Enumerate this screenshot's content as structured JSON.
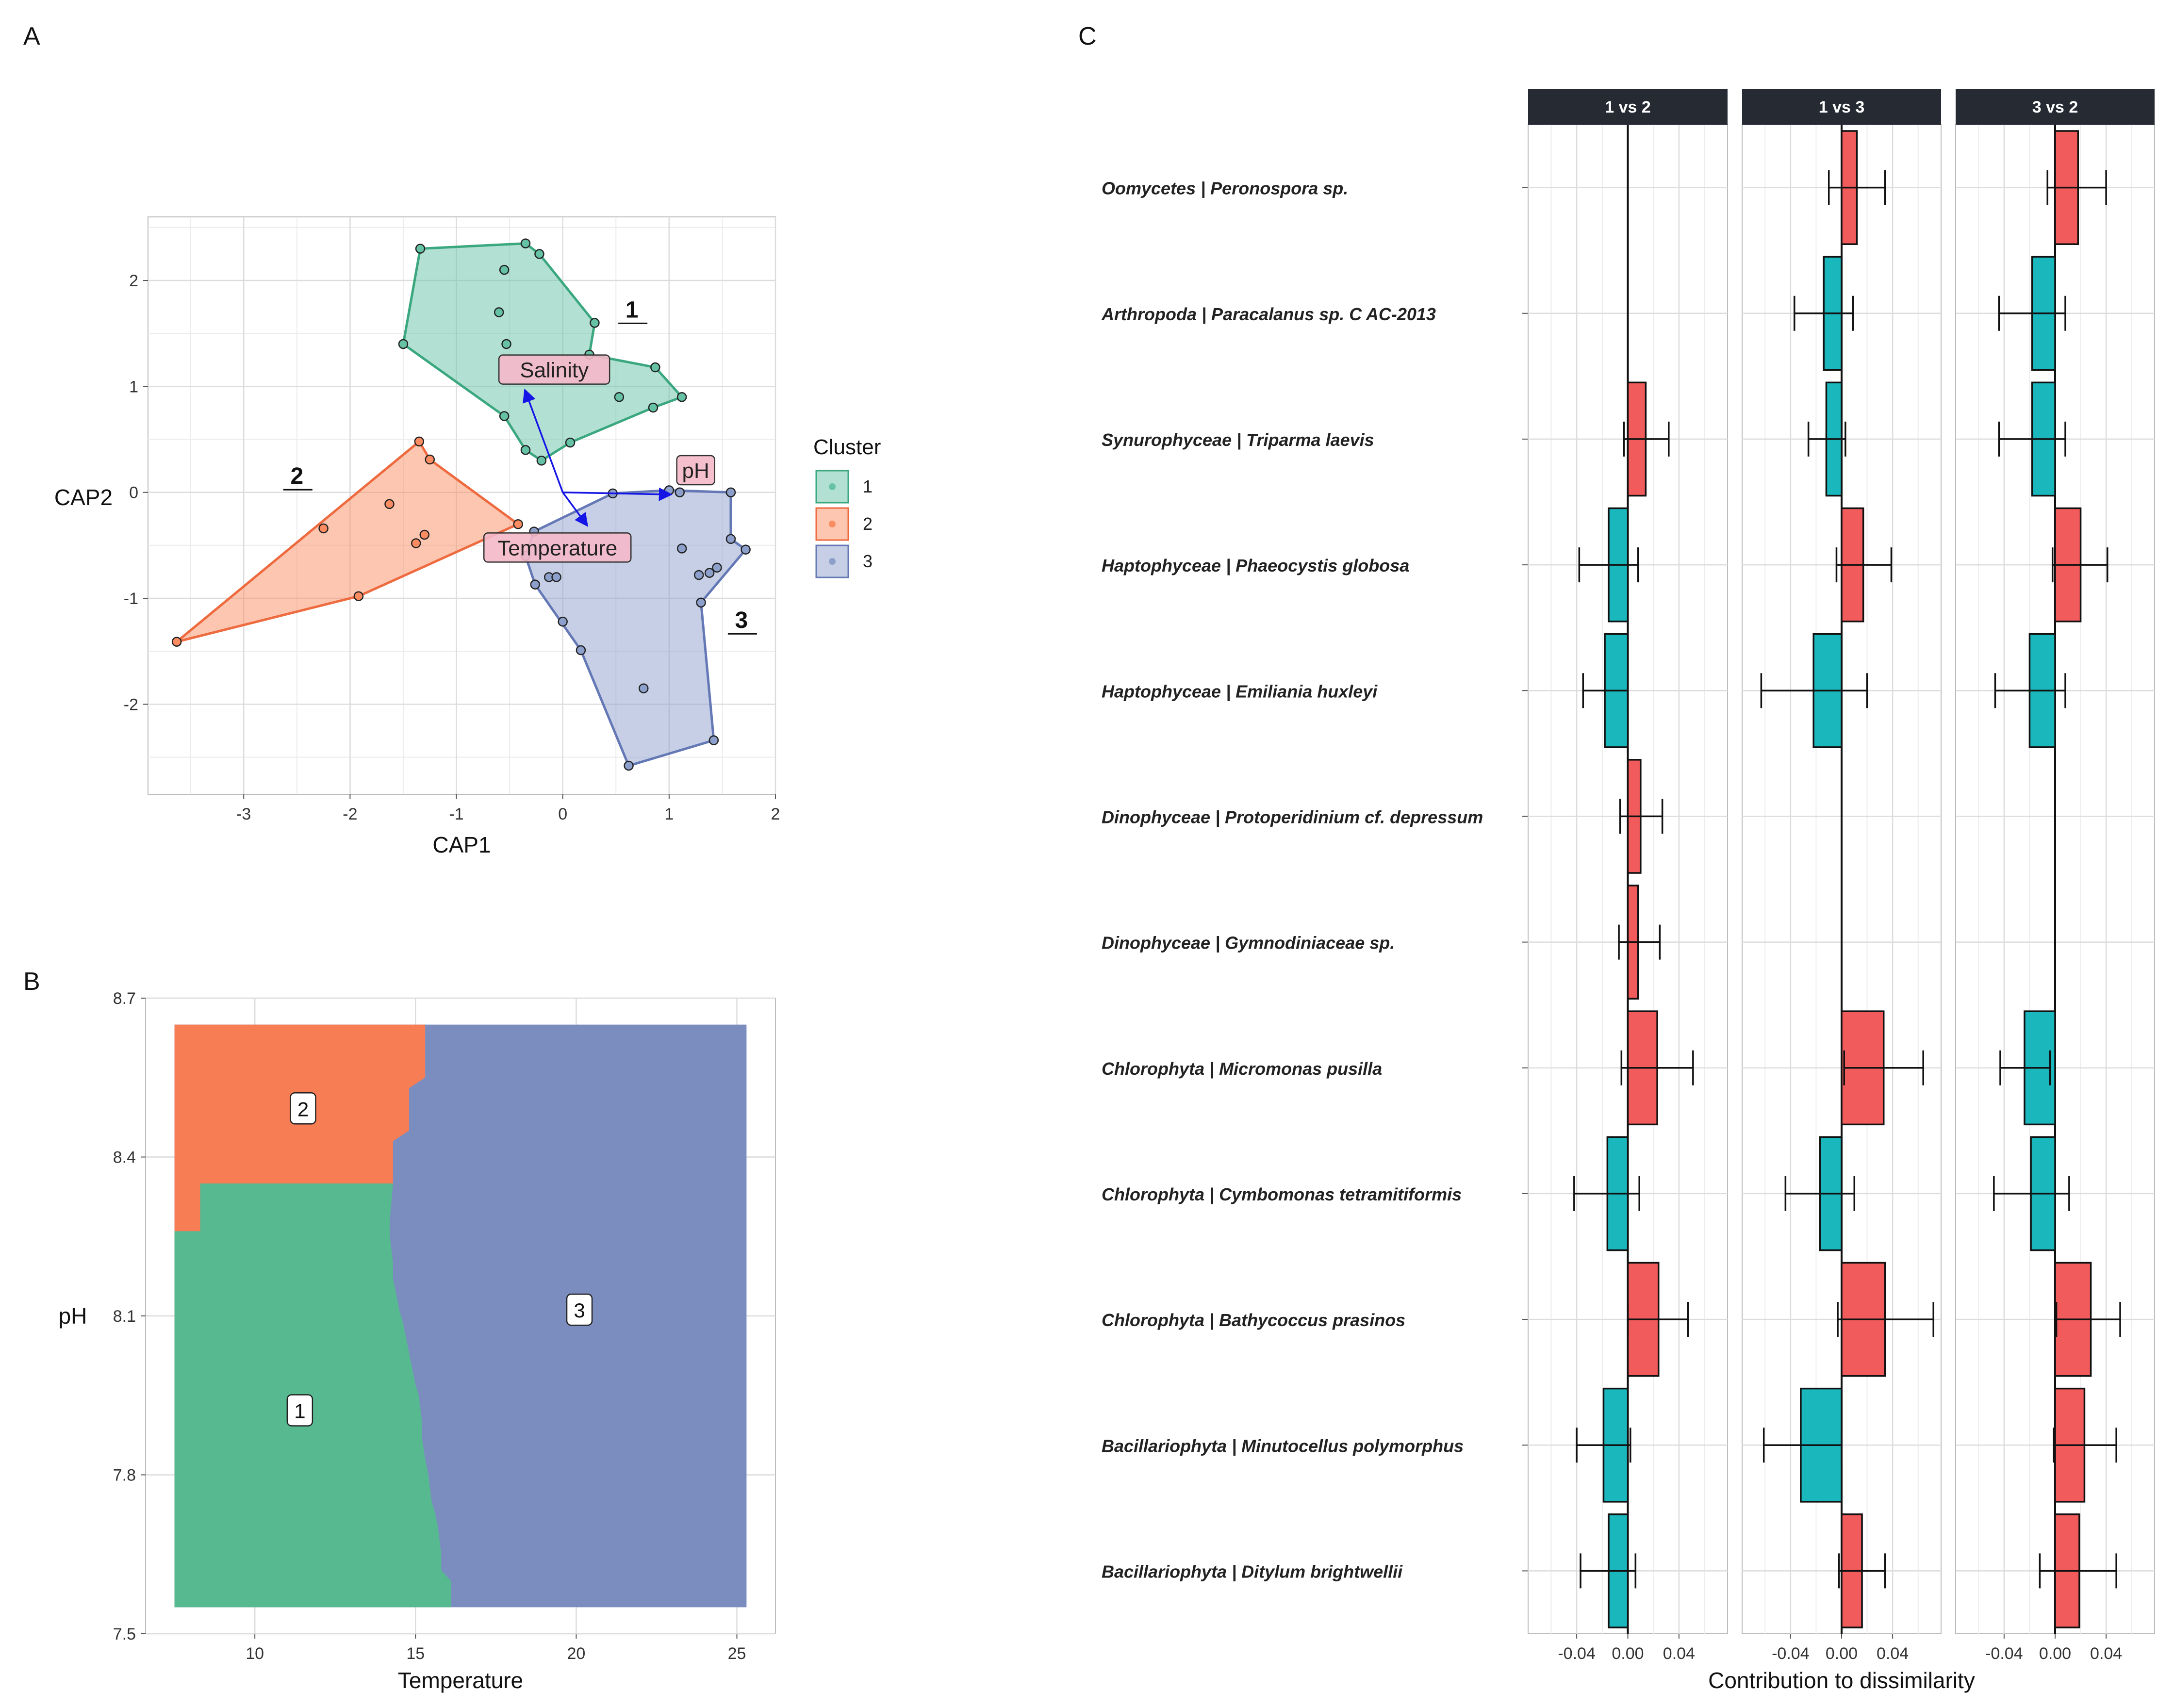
{
  "panels": {
    "a": "A",
    "b": "B",
    "c": "C"
  },
  "colors": {
    "cluster1": "#66c2a5",
    "cluster2": "#fc8d62",
    "cluster3": "#8da0cb",
    "tile1": "#57b990",
    "tile2": "#f77d54",
    "tile3": "#7b8dbf",
    "pos": "#f25b5b",
    "neg": "#1ab7bd",
    "arrow": "#1515e6",
    "strip": "#262a33",
    "grid": "#dcdcdc",
    "envLabel": "#f4b8c9"
  },
  "chart_data": [
    {
      "type": "scatter",
      "panel": "A",
      "xlabel": "CAP1",
      "ylabel": "CAP2",
      "xlim": [
        -3.9,
        2.0
      ],
      "ylim": [
        -2.85,
        2.6
      ],
      "xticks": [
        "-3",
        "-2",
        "-1",
        "0",
        "1",
        "2"
      ],
      "yticks": [
        "-2",
        "-1",
        "0",
        "1",
        "2"
      ],
      "grid": true,
      "legend": {
        "title": "Cluster",
        "position": "right",
        "entries": [
          "1",
          "2",
          "3"
        ]
      },
      "series": [
        {
          "name": "1",
          "points": [
            [
              -1.34,
              2.3
            ],
            [
              -0.55,
              2.1
            ],
            [
              -0.35,
              2.35
            ],
            [
              -0.22,
              2.25
            ],
            [
              -0.6,
              1.7
            ],
            [
              -0.53,
              1.4
            ],
            [
              0.3,
              1.6
            ],
            [
              -1.5,
              1.4
            ],
            [
              0.25,
              1.3
            ],
            [
              0.87,
              1.18
            ],
            [
              0.53,
              0.9
            ],
            [
              1.12,
              0.9
            ],
            [
              0.85,
              0.8
            ],
            [
              -0.55,
              0.72
            ],
            [
              0.07,
              0.47
            ],
            [
              -0.35,
              0.4
            ],
            [
              -0.2,
              0.3
            ]
          ]
        },
        {
          "name": "2",
          "points": [
            [
              -1.35,
              0.48
            ],
            [
              -1.25,
              0.31
            ],
            [
              -1.63,
              -0.11
            ],
            [
              -2.25,
              -0.34
            ],
            [
              -1.3,
              -0.4
            ],
            [
              -1.38,
              -0.48
            ],
            [
              -0.42,
              -0.3
            ],
            [
              -1.92,
              -0.98
            ],
            [
              -3.63,
              -1.41
            ]
          ]
        },
        {
          "name": "3",
          "points": [
            [
              1.0,
              0.02
            ],
            [
              1.1,
              0.0
            ],
            [
              0.47,
              -0.01
            ],
            [
              1.58,
              0.0
            ],
            [
              1.58,
              -0.44
            ],
            [
              1.72,
              -0.54
            ],
            [
              1.12,
              -0.53
            ],
            [
              1.45,
              -0.71
            ],
            [
              1.38,
              -0.76
            ],
            [
              1.28,
              -0.78
            ],
            [
              -0.27,
              -0.37
            ],
            [
              -0.35,
              -0.6
            ],
            [
              -0.13,
              -0.8
            ],
            [
              -0.06,
              -0.8
            ],
            [
              -0.26,
              -0.87
            ],
            [
              1.3,
              -1.04
            ],
            [
              0.0,
              -1.22
            ],
            [
              0.17,
              -1.49
            ],
            [
              0.76,
              -1.85
            ],
            [
              1.42,
              -2.34
            ],
            [
              0.62,
              -2.58
            ]
          ]
        }
      ],
      "hulls": [
        {
          "name": "1",
          "points": [
            [
              -1.34,
              2.3
            ],
            [
              -0.35,
              2.35
            ],
            [
              -0.22,
              2.25
            ],
            [
              0.3,
              1.6
            ],
            [
              0.25,
              1.3
            ],
            [
              0.87,
              1.18
            ],
            [
              1.12,
              0.9
            ],
            [
              0.85,
              0.8
            ],
            [
              0.07,
              0.47
            ],
            [
              -0.2,
              0.3
            ],
            [
              -0.35,
              0.4
            ],
            [
              -0.55,
              0.72
            ],
            [
              -1.5,
              1.4
            ]
          ]
        },
        {
          "name": "2",
          "points": [
            [
              -1.35,
              0.48
            ],
            [
              -1.25,
              0.31
            ],
            [
              -0.42,
              -0.3
            ],
            [
              -1.92,
              -0.98
            ],
            [
              -3.63,
              -1.41
            ]
          ]
        },
        {
          "name": "3",
          "points": [
            [
              0.47,
              -0.01
            ],
            [
              1.0,
              0.02
            ],
            [
              1.58,
              0.0
            ],
            [
              1.58,
              -0.44
            ],
            [
              1.72,
              -0.54
            ],
            [
              1.3,
              -1.04
            ],
            [
              1.42,
              -2.34
            ],
            [
              0.62,
              -2.58
            ],
            [
              0.17,
              -1.49
            ],
            [
              -0.26,
              -0.87
            ],
            [
              -0.35,
              -0.6
            ],
            [
              -0.27,
              -0.37
            ]
          ]
        }
      ],
      "cluster_labels": [
        {
          "text": "1",
          "x": 0.65,
          "y": 1.65
        },
        {
          "text": "2",
          "x": -2.5,
          "y": 0.08
        },
        {
          "text": "3",
          "x": 1.68,
          "y": -1.28
        }
      ],
      "vectors": [
        {
          "label": "Salinity",
          "x": -0.35,
          "y": 0.95,
          "label_x": -0.08,
          "label_y": 1.15
        },
        {
          "label": "pH",
          "x": 1.0,
          "y": -0.02,
          "label_x": 1.25,
          "label_y": 0.2
        },
        {
          "label": "Temperature",
          "x": 0.22,
          "y": -0.3,
          "label_x": -0.05,
          "label_y": -0.53
        }
      ]
    },
    {
      "type": "heatmap",
      "panel": "B",
      "xlabel": "Temperature",
      "ylabel": "pH",
      "xlim": [
        6.6,
        26.2
      ],
      "ylim": [
        7.5,
        8.7
      ],
      "xticks": [
        "10",
        "15",
        "20",
        "25"
      ],
      "yticks": [
        "7.5",
        "7.8",
        "8.1",
        "8.4",
        "8.7"
      ],
      "data_extent": {
        "x": [
          7.5,
          25.3
        ],
        "y": [
          7.55,
          8.65
        ]
      },
      "boundary_1_3": [
        [
          14.3,
          8.35
        ],
        [
          14.2,
          8.28
        ],
        [
          14.2,
          8.25
        ],
        [
          14.3,
          8.2
        ],
        [
          14.3,
          8.17
        ],
        [
          14.4,
          8.14
        ],
        [
          14.5,
          8.11
        ],
        [
          14.6,
          8.09
        ],
        [
          14.7,
          8.06
        ],
        [
          14.8,
          8.03
        ],
        [
          14.9,
          8.0
        ],
        [
          15.0,
          7.97
        ],
        [
          15.1,
          7.95
        ],
        [
          15.2,
          7.9
        ],
        [
          15.2,
          7.87
        ],
        [
          15.3,
          7.83
        ],
        [
          15.4,
          7.8
        ],
        [
          15.5,
          7.75
        ],
        [
          15.6,
          7.73
        ],
        [
          15.7,
          7.7
        ],
        [
          15.8,
          7.65
        ],
        [
          15.8,
          7.62
        ],
        [
          16.1,
          7.6
        ],
        [
          16.1,
          7.55
        ]
      ],
      "boundary_2_3": [
        [
          15.3,
          8.65
        ],
        [
          15.3,
          8.55
        ],
        [
          14.8,
          8.53
        ],
        [
          14.8,
          8.45
        ],
        [
          14.3,
          8.43
        ],
        [
          14.3,
          8.35
        ]
      ],
      "boundary_1_2": [
        [
          7.5,
          8.26
        ],
        [
          8.3,
          8.26
        ],
        [
          8.3,
          8.35
        ],
        [
          14.3,
          8.35
        ]
      ],
      "region_labels": [
        {
          "text": "2",
          "x": 11.5,
          "y": 8.49
        },
        {
          "text": "3",
          "x": 20.1,
          "y": 8.11
        },
        {
          "text": "1",
          "x": 11.4,
          "y": 7.92
        }
      ]
    },
    {
      "type": "bar",
      "panel": "C",
      "orientation": "horizontal",
      "xlabel": "Contribution to dissimilarity",
      "xlim": [
        -0.078,
        0.078
      ],
      "xticks": [
        "-0.04",
        "0.00",
        "0.04"
      ],
      "facets": [
        "1 vs 2",
        "1 vs 3",
        "3 vs 2"
      ],
      "categories": [
        "Oomycetes | Peronospora sp.",
        "Arthropoda | Paracalanus sp. C AC-2013",
        "Synurophyceae | Triparma laevis",
        "Haptophyceae | Phaeocystis globosa",
        "Haptophyceae | Emiliania huxleyi",
        "Dinophyceae | Protoperidinium cf. depressum",
        "Dinophyceae | Gymnodiniaceae sp.",
        "Chlorophyta | Micromonas pusilla",
        "Chlorophyta | Cymbomonas tetramitiformis",
        "Chlorophyta | Bathycoccus prasinos",
        "Bacillariophyta | Minutocellus polymorphus",
        "Bacillariophyta | Ditylum brightwellii"
      ],
      "series": [
        {
          "facet": "1 vs 2",
          "values": [
            null,
            null,
            0.014,
            -0.015,
            -0.018,
            0.01,
            0.008,
            0.023,
            -0.016,
            0.024,
            -0.019,
            -0.015
          ],
          "err_low": [
            null,
            null,
            -0.003,
            -0.038,
            -0.035,
            -0.006,
            -0.007,
            -0.005,
            -0.042,
            0.0,
            -0.04,
            -0.037
          ],
          "err_high": [
            null,
            null,
            0.032,
            0.008,
            0.0,
            0.027,
            0.025,
            0.051,
            0.009,
            0.047,
            0.002,
            0.006
          ]
        },
        {
          "facet": "1 vs 3",
          "values": [
            0.012,
            -0.014,
            -0.012,
            0.017,
            -0.022,
            null,
            null,
            0.033,
            -0.017,
            0.034,
            -0.032,
            0.016
          ],
          "err_low": [
            -0.01,
            -0.037,
            -0.026,
            -0.004,
            -0.063,
            null,
            null,
            0.002,
            -0.044,
            -0.003,
            -0.061,
            -0.002
          ],
          "err_high": [
            0.034,
            0.009,
            0.003,
            0.039,
            0.02,
            null,
            null,
            0.064,
            0.01,
            0.072,
            0.0,
            0.034
          ]
        },
        {
          "facet": "3 vs 2",
          "values": [
            0.018,
            -0.018,
            -0.018,
            0.02,
            -0.02,
            null,
            null,
            -0.024,
            -0.019,
            0.028,
            0.023,
            0.019
          ],
          "err_low": [
            -0.006,
            -0.044,
            -0.044,
            -0.002,
            -0.047,
            null,
            null,
            -0.043,
            -0.048,
            0.001,
            -0.001,
            -0.012
          ],
          "err_high": [
            0.04,
            0.008,
            0.008,
            0.041,
            0.008,
            null,
            null,
            -0.004,
            0.011,
            0.051,
            0.048,
            0.048
          ]
        }
      ]
    }
  ]
}
